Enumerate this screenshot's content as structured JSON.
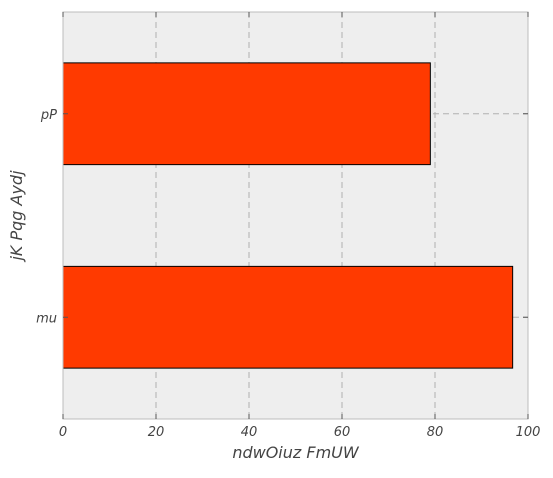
{
  "chart_data": {
    "type": "bar",
    "orientation": "horizontal",
    "categories": [
      "mu",
      "pP"
    ],
    "values": [
      96.7,
      79
    ],
    "xlabel": "ndwOiuz FmUW",
    "ylabel": "jK Pqg Aydj",
    "xlim": [
      0,
      100
    ],
    "xticks": [
      0,
      20,
      40,
      60,
      80,
      100
    ],
    "xtick_labels": [
      "0",
      "20",
      "40",
      "60",
      "80",
      "100"
    ],
    "grid": true,
    "colors": {
      "bar_fill": "#ff3a00",
      "bar_edge": "#000000",
      "plot_background": "#eeeeee",
      "grid": "#b0b0b0",
      "frame": "#bcbcbc",
      "text": "#444444"
    }
  }
}
